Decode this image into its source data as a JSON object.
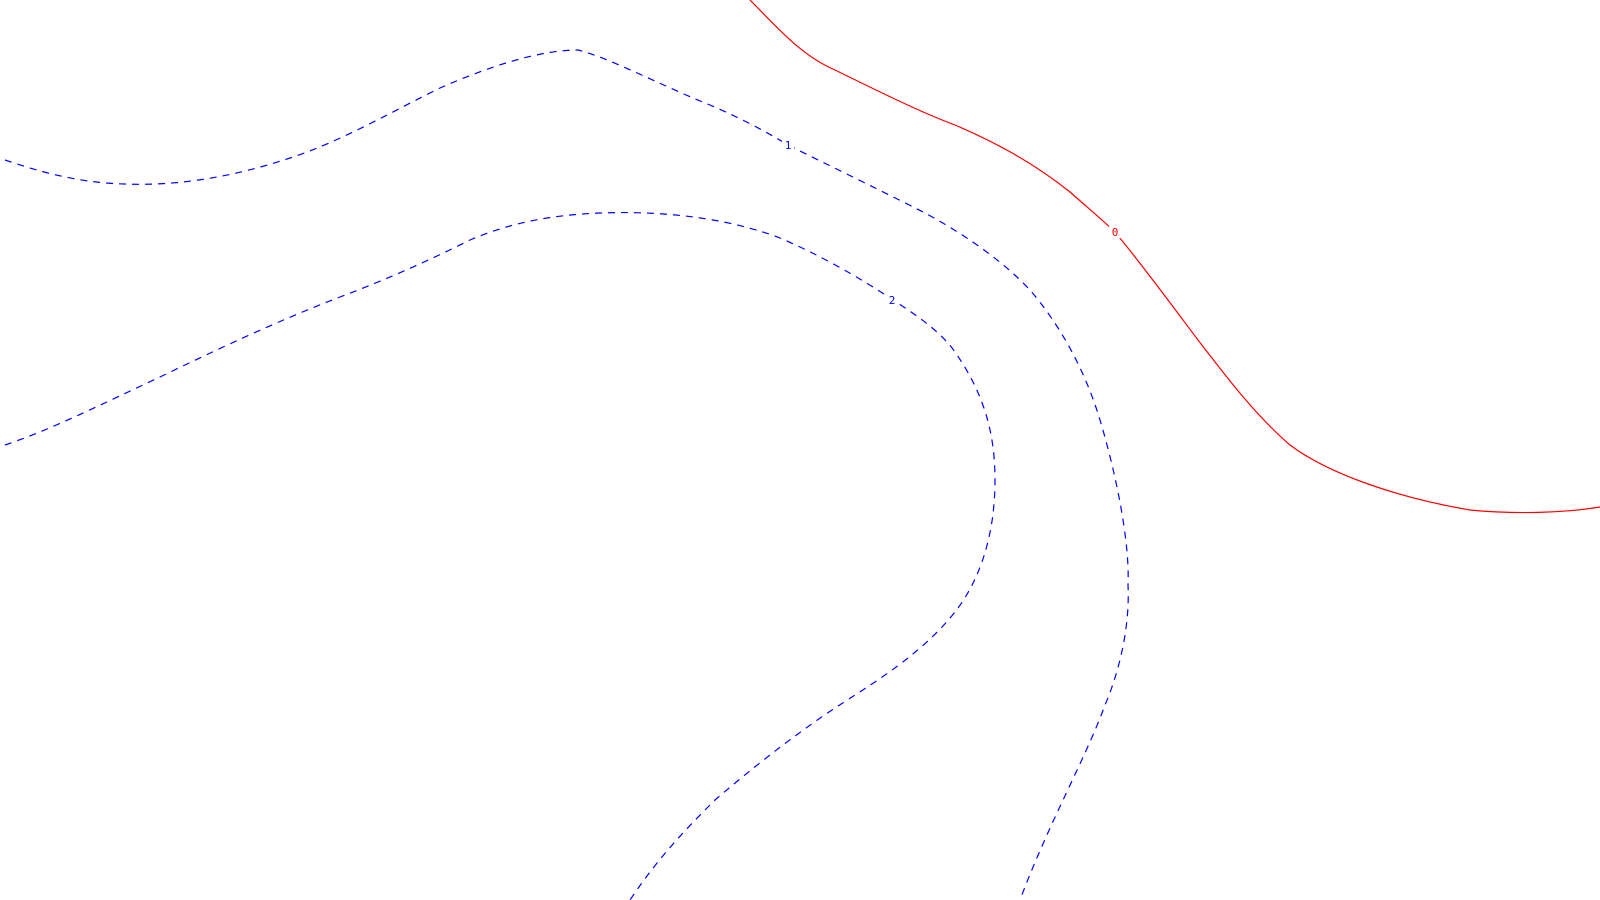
{
  "chart_data": {
    "type": "contour",
    "title": "",
    "xlabel": "",
    "ylabel": "",
    "grid": false,
    "legend": "none",
    "levels": [
      {
        "level": "0",
        "label": "0",
        "color": "#ff0000",
        "style": "solid"
      },
      {
        "level": "1",
        "label": "1",
        "color": "#0000ff",
        "style": "dashed"
      },
      {
        "level": "2",
        "label": "2",
        "color": "#0000ff",
        "style": "dashed"
      }
    ]
  }
}
